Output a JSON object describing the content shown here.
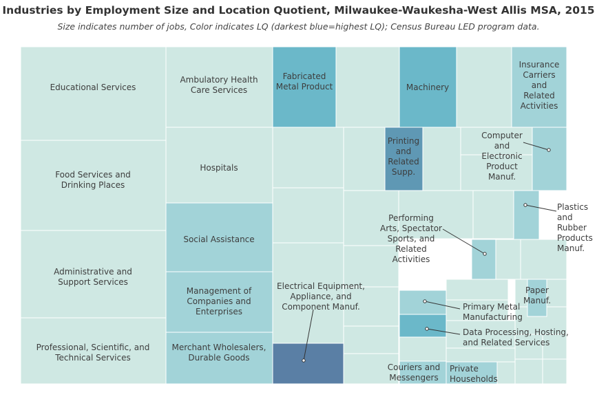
{
  "chart_data": {
    "type": "treemap",
    "title": "Industries by Employment Size and Location Quotient, Milwaukee-Waukesha-West Allis MSA, 2015",
    "subtitle": "Size indicates number of jobs, Color indicates LQ (darkest blue=highest LQ); Census Bureau LED program data.",
    "colors": {
      "lq_lowest": "#cfe8e3",
      "lq_low": "#a2d3d8",
      "lq_medium": "#6bb8c9",
      "lq_high": "#5f98b4",
      "lq_highest": "#5a7fa5",
      "cell_border": "#ffffff",
      "callout_line": "#333333"
    },
    "items": [
      {
        "label": "Educational Services",
        "lq_class": "lq_lowest"
      },
      {
        "label": "Food Services and\nDrinking Places",
        "lq_class": "lq_lowest"
      },
      {
        "label": "Administrative and\nSupport Services",
        "lq_class": "lq_lowest"
      },
      {
        "label": "Professional, Scientific, and\nTechnical Services",
        "lq_class": "lq_lowest"
      },
      {
        "label": "Ambulatory Health\nCare Services",
        "lq_class": "lq_lowest"
      },
      {
        "label": "Hospitals",
        "lq_class": "lq_lowest"
      },
      {
        "label": "Social Assistance",
        "lq_class": "lq_low"
      },
      {
        "label": "Management of\nCompanies and\nEnterprises",
        "lq_class": "lq_low"
      },
      {
        "label": "Merchant Wholesalers,\nDurable Goods",
        "lq_class": "lq_low"
      },
      {
        "label": "Fabricated\nMetal Product",
        "lq_class": "lq_medium"
      },
      {
        "label": "Machinery",
        "lq_class": "lq_medium"
      },
      {
        "label": "Insurance\nCarriers\nand\nRelated\nActivities",
        "lq_class": "lq_low"
      },
      {
        "label": "Printing\nand\nRelated\nSupp.",
        "lq_class": "lq_high"
      },
      {
        "label": "Computer\nand\nElectronic\nProduct\nManuf.",
        "lq_class": "lq_low"
      },
      {
        "label": "Plastics\nand\nRubber\nProducts\nManuf.",
        "lq_class": "lq_low"
      },
      {
        "label": "Performing\nArts, Spectator\nSports, and\nRelated\nActivities",
        "lq_class": "lq_low"
      },
      {
        "label": "Electrical Equipment,\nAppliance, and\nComponent Manuf.",
        "lq_class": "lq_highest"
      },
      {
        "label": "Primary Metal\nManufacturing",
        "lq_class": "lq_low"
      },
      {
        "label": "Data Processing, Hosting,\nand Related Services",
        "lq_class": "lq_medium"
      },
      {
        "label": "Paper\nManuf.",
        "lq_class": "lq_low"
      },
      {
        "label": "Couriers and\nMessengers",
        "lq_class": "lq_low"
      },
      {
        "label": "Private\nHouseholds",
        "lq_class": "lq_low"
      }
    ]
  }
}
